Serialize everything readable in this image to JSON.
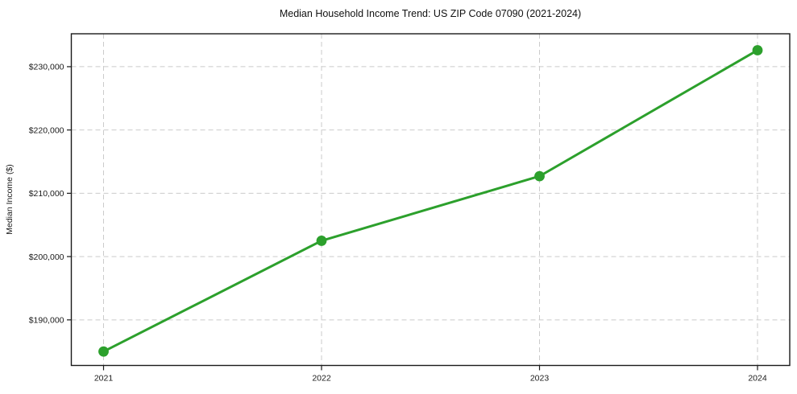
{
  "chart_data": {
    "type": "line",
    "title": "Median Household Income Trend: US ZIP Code 07090 (2021-2024)",
    "xlabel": "",
    "ylabel": "Median Income ($)",
    "categories": [
      "2021",
      "2022",
      "2023",
      "2024"
    ],
    "values": [
      185000,
      202500,
      212700,
      232600
    ],
    "ytick_values": [
      190000,
      200000,
      210000,
      220000,
      230000
    ],
    "ytick_labels": [
      "$190,000",
      "$200,000",
      "$210,000",
      "$220,000",
      "$230,000"
    ],
    "xtick_labels": [
      "2021",
      "2022",
      "2023",
      "2024"
    ],
    "ylim": [
      182800,
      235200
    ],
    "grid": true,
    "legend": "none",
    "line_color": "#2ca02c",
    "marker_style": "circle"
  }
}
